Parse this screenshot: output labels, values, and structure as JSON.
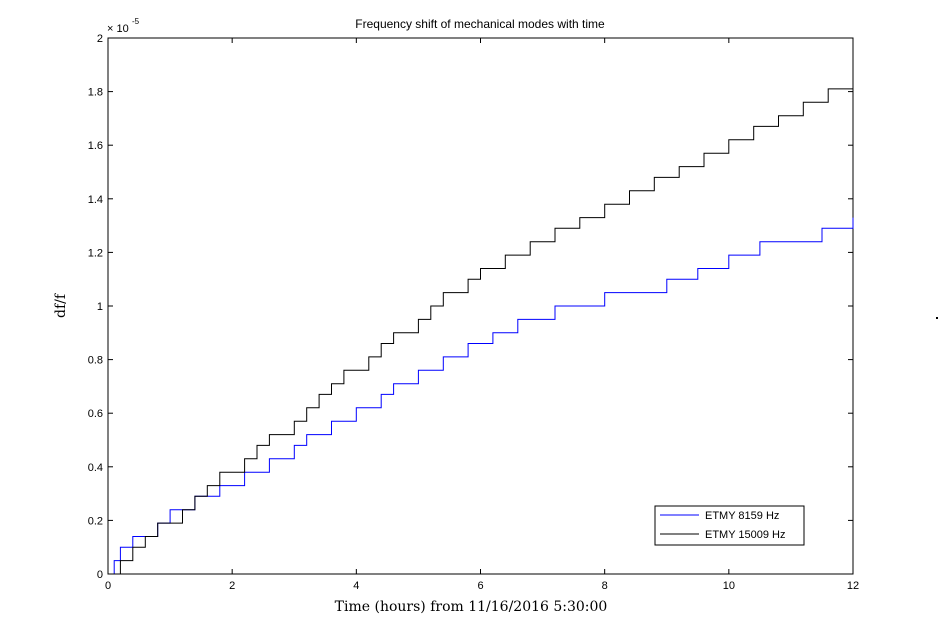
{
  "chart_data": {
    "type": "line",
    "title": "Frequency shift of mechanical modes with time",
    "xlabel": "Time (hours) from 11/16/2016 5:30:00",
    "ylabel": "df/f",
    "xlim": [
      0,
      12
    ],
    "ylim": [
      0,
      2
    ],
    "x_ticks": [
      "0",
      "2",
      "4",
      "6",
      "8",
      "10",
      "12"
    ],
    "y_ticks": [
      "0",
      "0.2",
      "0.4",
      "0.6",
      "0.8",
      "1",
      "1.2",
      "1.4",
      "1.6",
      "1.8",
      "2"
    ],
    "y_multiplier": "× 10",
    "y_exponent": "-5",
    "grid": false,
    "legend_position": "bottom-right",
    "series": [
      {
        "name": "ETMY 8159 Hz",
        "color": "#0000ff",
        "x": [
          0,
          0.1,
          0.2,
          0.3,
          0.4,
          0.5,
          0.6,
          0.8,
          1.0,
          1.2,
          1.4,
          1.6,
          1.8,
          2.0,
          2.2,
          2.4,
          2.6,
          2.8,
          3.0,
          3.2,
          3.4,
          3.6,
          3.8,
          4.0,
          4.2,
          4.4,
          4.6,
          4.8,
          5.0,
          5.2,
          5.4,
          5.6,
          5.8,
          6.0,
          6.2,
          6.4,
          6.6,
          6.8,
          7.0,
          7.2,
          7.5,
          8.0,
          8.5,
          9.0,
          9.5,
          10.0,
          10.5,
          11.0,
          11.5,
          12.0
        ],
        "y": [
          0.0,
          0.05,
          0.1,
          0.1,
          0.14,
          0.14,
          0.14,
          0.19,
          0.24,
          0.24,
          0.29,
          0.29,
          0.33,
          0.33,
          0.38,
          0.38,
          0.43,
          0.43,
          0.48,
          0.52,
          0.52,
          0.57,
          0.57,
          0.62,
          0.62,
          0.67,
          0.71,
          0.71,
          0.76,
          0.76,
          0.81,
          0.81,
          0.86,
          0.86,
          0.9,
          0.9,
          0.95,
          0.95,
          0.95,
          1.0,
          1.0,
          1.05,
          1.05,
          1.1,
          1.14,
          1.19,
          1.24,
          1.24,
          1.29,
          1.33
        ]
      },
      {
        "name": "ETMY 15009 Hz",
        "color": "#000000",
        "x": [
          0,
          0.2,
          0.4,
          0.6,
          0.8,
          1.0,
          1.2,
          1.4,
          1.6,
          1.8,
          2.0,
          2.2,
          2.4,
          2.6,
          2.8,
          3.0,
          3.2,
          3.4,
          3.6,
          3.8,
          4.0,
          4.2,
          4.4,
          4.6,
          4.8,
          5.0,
          5.2,
          5.4,
          5.6,
          5.8,
          6.0,
          6.4,
          6.8,
          7.2,
          7.6,
          8.0,
          8.4,
          8.8,
          9.2,
          9.6,
          10.0,
          10.4,
          10.8,
          11.2,
          11.6,
          12.0
        ],
        "y": [
          0.0,
          0.05,
          0.1,
          0.14,
          0.19,
          0.19,
          0.24,
          0.29,
          0.33,
          0.38,
          0.38,
          0.43,
          0.48,
          0.52,
          0.52,
          0.57,
          0.62,
          0.67,
          0.71,
          0.76,
          0.76,
          0.81,
          0.86,
          0.9,
          0.9,
          0.95,
          1.0,
          1.05,
          1.05,
          1.1,
          1.14,
          1.19,
          1.24,
          1.29,
          1.33,
          1.38,
          1.43,
          1.48,
          1.52,
          1.57,
          1.62,
          1.67,
          1.71,
          1.76,
          1.81,
          1.86
        ]
      }
    ]
  }
}
